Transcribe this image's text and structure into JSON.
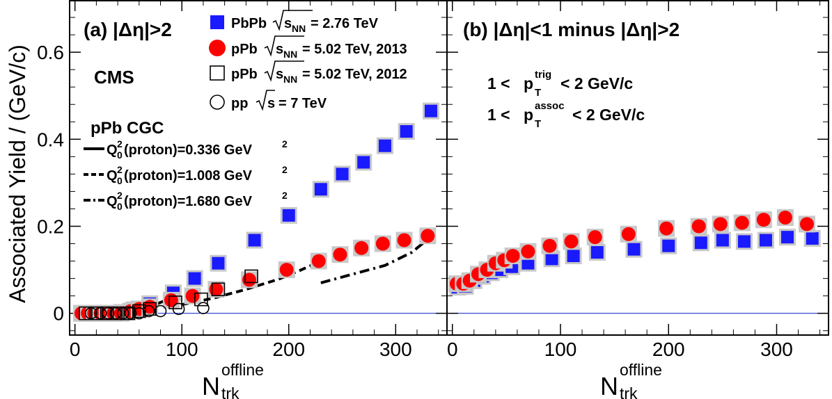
{
  "chart_data": [
    {
      "panel": "a",
      "type": "scatter",
      "title": "(a)  |Δη|>2",
      "collaboration": "CMS",
      "xlabel": "N",
      "xlabel_sup": "offline",
      "xlabel_sub": "trk",
      "ylabel": "Associated Yield / (GeV/c)",
      "xlim": [
        -5,
        348
      ],
      "ylim": [
        -0.05,
        0.72
      ],
      "xticks": [
        0,
        100,
        200,
        300
      ],
      "yticks": [
        0,
        0.2,
        0.4,
        0.6
      ],
      "ytick_labels": [
        "0",
        "0.2",
        "0.4",
        "0.6"
      ],
      "legend_position": "top",
      "series": [
        {
          "name": "PbPb",
          "energy": "= 2.76 TeV",
          "sqrt_label": "s",
          "sqrt_sub": "NN",
          "marker": "filled-square",
          "color": "#1a1aff",
          "x": [
            7,
            13,
            20,
            28,
            35,
            44,
            55,
            70,
            92,
            112,
            134,
            168,
            200,
            230,
            250,
            270,
            290,
            310,
            333
          ],
          "y": [
            0.0,
            0.0,
            0.0,
            0.0,
            0.0,
            0.002,
            0.008,
            0.022,
            0.047,
            0.08,
            0.115,
            0.168,
            0.225,
            0.285,
            0.32,
            0.347,
            0.385,
            0.418,
            0.465
          ]
        },
        {
          "name": "pPb",
          "energy": "= 5.02 TeV, 2013",
          "sqrt_label": "s",
          "sqrt_sub": "NN",
          "marker": "filled-circle",
          "color": "#ff0000",
          "x": [
            6,
            12,
            18,
            24,
            30,
            36,
            43,
            52,
            60,
            70,
            90,
            110,
            132,
            163,
            198,
            228,
            248,
            268,
            288,
            308,
            330
          ],
          "y": [
            0.0,
            0.0,
            0.0,
            0.0,
            0.0,
            0.0,
            0.0,
            0.005,
            0.01,
            0.015,
            0.03,
            0.04,
            0.055,
            0.077,
            0.1,
            0.12,
            0.135,
            0.15,
            0.16,
            0.168,
            0.178
          ]
        },
        {
          "name": "pPb",
          "energy": "= 5.02 TeV, 2012",
          "sqrt_label": "s",
          "sqrt_sub": "NN",
          "marker": "open-square",
          "color": "#000000",
          "x": [
            10,
            20,
            30,
            40,
            50,
            60,
            70,
            94,
            118,
            134,
            165
          ],
          "y": [
            0.0,
            0.0,
            0.0,
            0.0,
            0.0,
            0.005,
            0.01,
            0.025,
            0.032,
            0.055,
            0.085
          ]
        },
        {
          "name": "pp",
          "energy": "= 7 TeV",
          "sqrt_label": "s",
          "sqrt_sub": "",
          "marker": "open-circle",
          "color": "#000000",
          "x": [
            15,
            24,
            31,
            38,
            45,
            52,
            60,
            69,
            80,
            97,
            120
          ],
          "y": [
            0.0,
            0.0,
            0.0,
            0.0,
            0.0,
            0.0,
            0.0,
            0.005,
            0.005,
            0.01,
            0.012
          ]
        }
      ],
      "cgc": {
        "title": "pPb CGC",
        "curves": [
          {
            "label": "(proton)=0.336 GeV",
            "style": "solid",
            "x": [
              20,
              40,
              60,
              75,
              85,
              95
            ],
            "y": [
              0.0,
              0.003,
              0.01,
              0.02,
              0.03,
              0.045
            ]
          },
          {
            "label": "(proton)=1.008 GeV",
            "style": "dashed",
            "x": [
              100,
              130,
              160,
              190,
              210,
              230
            ],
            "y": [
              0.02,
              0.035,
              0.055,
              0.078,
              0.098,
              0.12
            ]
          },
          {
            "label": "(proton)=1.680 GeV",
            "style": "dashdot",
            "x": [
              230,
              260,
              290,
              315,
              330
            ],
            "y": [
              0.07,
              0.09,
              0.11,
              0.14,
              0.17
            ]
          }
        ]
      }
    },
    {
      "panel": "b",
      "type": "scatter",
      "title": "(b)  |Δη|<1 minus |Δη|>2",
      "xlabel": "N",
      "xlabel_sup": "offline",
      "xlabel_sub": "trk",
      "xlim": [
        -5,
        348
      ],
      "ylim": [
        -0.05,
        0.72
      ],
      "xticks": [
        0,
        100,
        200,
        300
      ],
      "cuts": [
        {
          "lhs": "1 <",
          "var": "p",
          "sup": "trig",
          "sub": "T",
          "rhs": "< 2 GeV/c"
        },
        {
          "lhs": "1 <",
          "var": "p",
          "sup": "assoc",
          "sub": "T",
          "rhs": "< 2 GeV/c"
        }
      ],
      "series": [
        {
          "name": "PbPb",
          "marker": "filled-square",
          "color": "#1a1aff",
          "x": [
            5,
            12,
            20,
            28,
            36,
            44,
            55,
            70,
            92,
            112,
            134,
            168,
            200,
            230,
            250,
            270,
            290,
            310,
            333
          ],
          "y": [
            0.06,
            0.062,
            0.075,
            0.085,
            0.093,
            0.1,
            0.107,
            0.115,
            0.125,
            0.132,
            0.14,
            0.147,
            0.155,
            0.162,
            0.168,
            0.165,
            0.168,
            0.175,
            0.172
          ]
        },
        {
          "name": "pPb",
          "marker": "filled-circle",
          "color": "#ff0000",
          "x": [
            4,
            10,
            16,
            24,
            32,
            40,
            48,
            56,
            70,
            90,
            110,
            132,
            163,
            198,
            228,
            248,
            268,
            288,
            308,
            328
          ],
          "y": [
            0.068,
            0.068,
            0.075,
            0.09,
            0.1,
            0.115,
            0.122,
            0.132,
            0.142,
            0.155,
            0.165,
            0.175,
            0.182,
            0.195,
            0.2,
            0.205,
            0.208,
            0.215,
            0.22,
            0.205
          ]
        }
      ]
    }
  ]
}
